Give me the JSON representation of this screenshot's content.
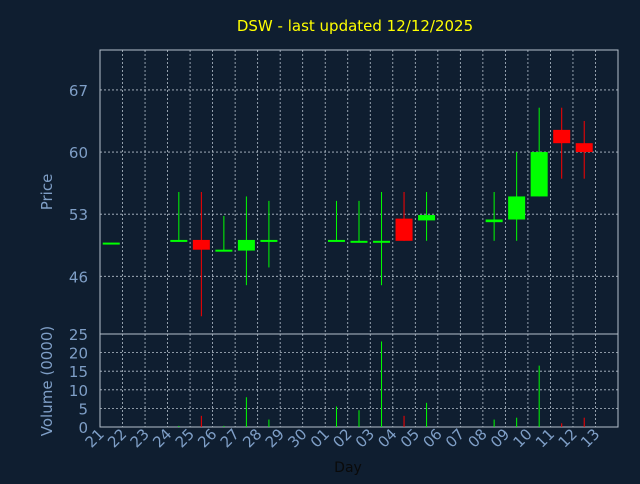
{
  "colors": {
    "background": "#0f1e30",
    "title": "#ffff00",
    "axis_text": "#7f9fc7",
    "grid": "#b5c0cc",
    "up": "#00ff00",
    "down": "#ff0000"
  },
  "chart_data": {
    "type": "candlestick",
    "title": "DSW - last updated 12/12/2025",
    "xlabel": "Day",
    "price_panel": {
      "ylabel": "Price",
      "yticks": [
        46,
        53,
        60,
        67
      ],
      "ylim": [
        39.5,
        71.5
      ]
    },
    "volume_panel": {
      "ylabel": "Volume (0000)",
      "yticks": [
        0,
        5,
        10,
        15,
        20,
        25
      ],
      "ylim": [
        0,
        25
      ]
    },
    "x_ticks": [
      "21",
      "22",
      "23",
      "24",
      "25",
      "26",
      "27",
      "28",
      "29",
      "30",
      "01",
      "02",
      "03",
      "04",
      "05",
      "06",
      "07",
      "08",
      "09",
      "10",
      "11",
      "12",
      "13"
    ],
    "grid": true,
    "candles": [
      {
        "x": "21",
        "open": 49.8,
        "high": 49.8,
        "low": 49.8,
        "close": 49.8,
        "volume": 0.0
      },
      {
        "x": "24",
        "open": 49.9,
        "high": 55.5,
        "low": 49.9,
        "close": 50.1,
        "volume": 0.3
      },
      {
        "x": "25",
        "open": 50.1,
        "high": 55.5,
        "low": 41.5,
        "close": 49.0,
        "volume": 3.0
      },
      {
        "x": "26",
        "open": 48.8,
        "high": 52.8,
        "low": 48.8,
        "close": 49.0,
        "volume": 0.3
      },
      {
        "x": "27",
        "open": 48.9,
        "high": 55.0,
        "low": 45.0,
        "close": 50.1,
        "volume": 8.0
      },
      {
        "x": "28",
        "open": 49.9,
        "high": 54.5,
        "low": 47.0,
        "close": 50.1,
        "volume": 2.0
      },
      {
        "x": "01",
        "open": 49.9,
        "high": 54.5,
        "low": 49.9,
        "close": 50.1,
        "volume": 5.5
      },
      {
        "x": "02",
        "open": 49.8,
        "high": 54.5,
        "low": 49.8,
        "close": 50.0,
        "volume": 4.5
      },
      {
        "x": "03",
        "open": 49.8,
        "high": 55.5,
        "low": 45.0,
        "close": 50.0,
        "volume": 23.0
      },
      {
        "x": "04",
        "open": 52.5,
        "high": 55.5,
        "low": 50.0,
        "close": 50.0,
        "volume": 3.0
      },
      {
        "x": "05",
        "open": 52.3,
        "high": 55.5,
        "low": 50.0,
        "close": 52.9,
        "volume": 6.5
      },
      {
        "x": "08",
        "open": 52.1,
        "high": 55.5,
        "low": 50.0,
        "close": 52.4,
        "volume": 2.0
      },
      {
        "x": "09",
        "open": 52.4,
        "high": 60.0,
        "low": 50.0,
        "close": 55.0,
        "volume": 2.5
      },
      {
        "x": "10",
        "open": 55.0,
        "high": 65.0,
        "low": 55.0,
        "close": 60.0,
        "volume": 16.5
      },
      {
        "x": "11",
        "open": 62.5,
        "high": 65.0,
        "low": 57.0,
        "close": 61.0,
        "volume": 1.0
      },
      {
        "x": "12",
        "open": 61.0,
        "high": 63.5,
        "low": 57.0,
        "close": 60.0,
        "volume": 2.5
      }
    ]
  }
}
